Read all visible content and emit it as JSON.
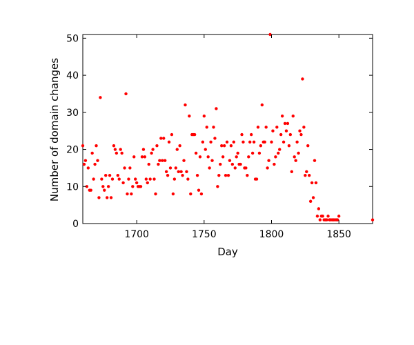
{
  "chart_data": {
    "type": "scatter",
    "title": "",
    "xlabel": "Day",
    "ylabel": "Number of domain changes",
    "xlim": [
      1660,
      1875
    ],
    "ylim": [
      0,
      51
    ],
    "xticks": [
      1700,
      1750,
      1800,
      1850
    ],
    "yticks": [
      0,
      10,
      20,
      30,
      40,
      50
    ],
    "grid": false,
    "marker_color": "#ff0000",
    "x": [
      1660,
      1661,
      1662,
      1663,
      1664,
      1665,
      1666,
      1667,
      1668,
      1669,
      1670,
      1671,
      1672,
      1673,
      1674,
      1675,
      1676,
      1677,
      1678,
      1679,
      1680,
      1681,
      1682,
      1683,
      1684,
      1685,
      1686,
      1687,
      1688,
      1689,
      1690,
      1691,
      1692,
      1693,
      1694,
      1695,
      1696,
      1697,
      1698,
      1699,
      1700,
      1701,
      1702,
      1703,
      1704,
      1705,
      1706,
      1707,
      1708,
      1709,
      1710,
      1711,
      1712,
      1713,
      1714,
      1715,
      1716,
      1717,
      1718,
      1719,
      1720,
      1721,
      1722,
      1723,
      1724,
      1725,
      1726,
      1727,
      1728,
      1729,
      1730,
      1731,
      1732,
      1733,
      1734,
      1735,
      1736,
      1737,
      1738,
      1739,
      1740,
      1741,
      1742,
      1743,
      1744,
      1745,
      1746,
      1747,
      1748,
      1749,
      1750,
      1751,
      1752,
      1753,
      1754,
      1755,
      1756,
      1757,
      1758,
      1759,
      1760,
      1761,
      1762,
      1763,
      1764,
      1765,
      1766,
      1767,
      1768,
      1769,
      1770,
      1771,
      1772,
      1773,
      1774,
      1775,
      1776,
      1777,
      1778,
      1779,
      1780,
      1781,
      1782,
      1783,
      1784,
      1785,
      1786,
      1787,
      1788,
      1789,
      1790,
      1791,
      1792,
      1793,
      1794,
      1795,
      1796,
      1797,
      1798,
      1799,
      1800,
      1801,
      1802,
      1803,
      1804,
      1805,
      1806,
      1807,
      1808,
      1809,
      1810,
      1811,
      1812,
      1813,
      1814,
      1815,
      1816,
      1817,
      1818,
      1819,
      1820,
      1821,
      1822,
      1823,
      1824,
      1825,
      1826,
      1827,
      1828,
      1829,
      1830,
      1831,
      1832,
      1833,
      1834,
      1835,
      1836,
      1837,
      1838,
      1839,
      1840,
      1841,
      1842,
      1843,
      1844,
      1845,
      1846,
      1847,
      1848,
      1849,
      1850,
      1875
    ],
    "y": [
      21,
      16,
      17,
      10,
      15,
      9,
      9,
      19,
      12,
      16,
      21,
      17,
      7,
      34,
      12,
      10,
      9,
      13,
      7,
      10,
      13,
      7,
      12,
      21,
      20,
      19,
      13,
      12,
      20,
      19,
      11,
      15,
      35,
      8,
      12,
      15,
      8,
      10,
      18,
      12,
      11,
      10,
      10,
      10,
      18,
      20,
      18,
      12,
      11,
      16,
      12,
      19,
      20,
      12,
      8,
      21,
      16,
      17,
      23,
      17,
      23,
      17,
      14,
      13,
      22,
      15,
      24,
      8,
      12,
      15,
      20,
      14,
      21,
      14,
      13,
      17,
      32,
      14,
      12,
      29,
      8,
      24,
      24,
      24,
      19,
      13,
      9,
      18,
      8,
      22,
      29,
      20,
      26,
      18,
      15,
      22,
      17,
      26,
      23,
      31,
      10,
      13,
      16,
      21,
      18,
      21,
      13,
      22,
      13,
      17,
      21,
      16,
      22,
      15,
      18,
      19,
      16,
      16,
      24,
      22,
      15,
      15,
      13,
      18,
      22,
      24,
      19,
      22,
      12,
      12,
      26,
      19,
      21,
      32,
      22,
      22,
      26,
      15,
      17,
      51,
      22,
      25,
      16,
      18,
      26,
      19,
      20,
      24,
      29,
      22,
      27,
      25,
      27,
      21,
      24,
      14,
      29,
      18,
      17,
      22,
      19,
      25,
      24,
      39,
      26,
      13,
      14,
      21,
      13,
      6,
      11,
      7,
      17,
      11,
      2,
      4,
      1,
      2,
      2,
      1,
      1,
      1,
      2,
      1,
      1,
      1,
      1,
      1,
      1,
      1,
      2,
      1
    ]
  }
}
